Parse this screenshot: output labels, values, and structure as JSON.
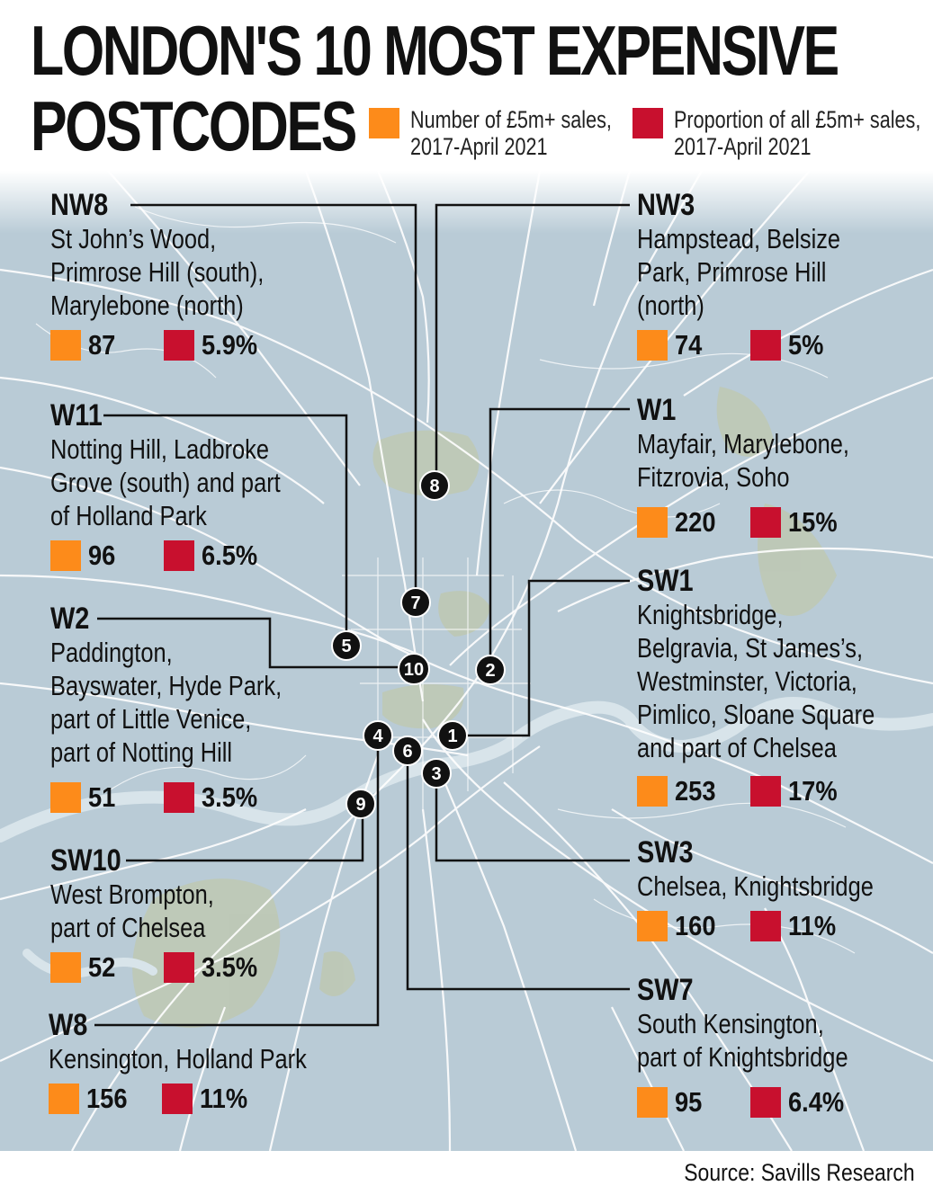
{
  "title_line1": "LONDON'S 10 MOST EXPENSIVE",
  "title_line2": "POSTCODES",
  "legend": {
    "count_label_1": "Number of £5m+ sales,",
    "count_label_2": "2017-April 2021",
    "share_label_1": "Proportion of all £5m+ sales,",
    "share_label_2": "2017-April 2021",
    "count_color": "#fd8b1a",
    "share_color": "#c8102e"
  },
  "postcodes": {
    "nw8": {
      "code": "NW8",
      "areas": [
        "St John’s Wood,",
        "Primrose Hill (south),",
        "Marylebone (north)"
      ],
      "count": "87",
      "share": "5.9%",
      "rank": "7"
    },
    "w11": {
      "code": "W11",
      "areas": [
        "Notting Hill, Ladbroke",
        "Grove (south) and part",
        "of Holland Park"
      ],
      "count": "96",
      "share": "6.5%",
      "rank": "5"
    },
    "w2": {
      "code": "W2",
      "areas": [
        "Paddington,",
        "Bayswater, Hyde Park,",
        "part of Little Venice,",
        "part of Notting Hill"
      ],
      "count": "51",
      "share": "3.5%",
      "rank": "10"
    },
    "sw10": {
      "code": "SW10",
      "areas": [
        "West Brompton,",
        "part of Chelsea"
      ],
      "count": "52",
      "share": "3.5%",
      "rank": "9"
    },
    "w8": {
      "code": "W8",
      "areas": [
        "Kensington, Holland Park"
      ],
      "count": "156",
      "share": "11%",
      "rank": "4"
    },
    "nw3": {
      "code": "NW3",
      "areas": [
        "Hampstead, Belsize",
        "Park, Primrose Hill",
        "(north)"
      ],
      "count": "74",
      "share": "5%",
      "rank": "8"
    },
    "w1": {
      "code": "W1",
      "areas": [
        "Mayfair, Marylebone,",
        "Fitzrovia, Soho"
      ],
      "count": "220",
      "share": "15%",
      "rank": "2"
    },
    "sw1": {
      "code": "SW1",
      "areas": [
        "Knightsbridge,",
        "Belgravia, St James’s,",
        "Westminster, Victoria,",
        "Pimlico, Sloane Square",
        "and part of Chelsea"
      ],
      "count": "253",
      "share": "17%",
      "rank": "1"
    },
    "sw3": {
      "code": "SW3",
      "areas": [
        "Chelsea, Knightsbridge"
      ],
      "count": "160",
      "share": "11%",
      "rank": "3"
    },
    "sw7": {
      "code": "SW7",
      "areas": [
        "South Kensington,",
        "part of Knightsbridge"
      ],
      "count": "95",
      "share": "6.4%",
      "rank": "6"
    }
  },
  "map_colors": {
    "land": "#b9cbd6",
    "water": "#a8c0cd",
    "parks": "#bec8b6",
    "roads": "#ffffff"
  },
  "source": "Source: Savills Research"
}
